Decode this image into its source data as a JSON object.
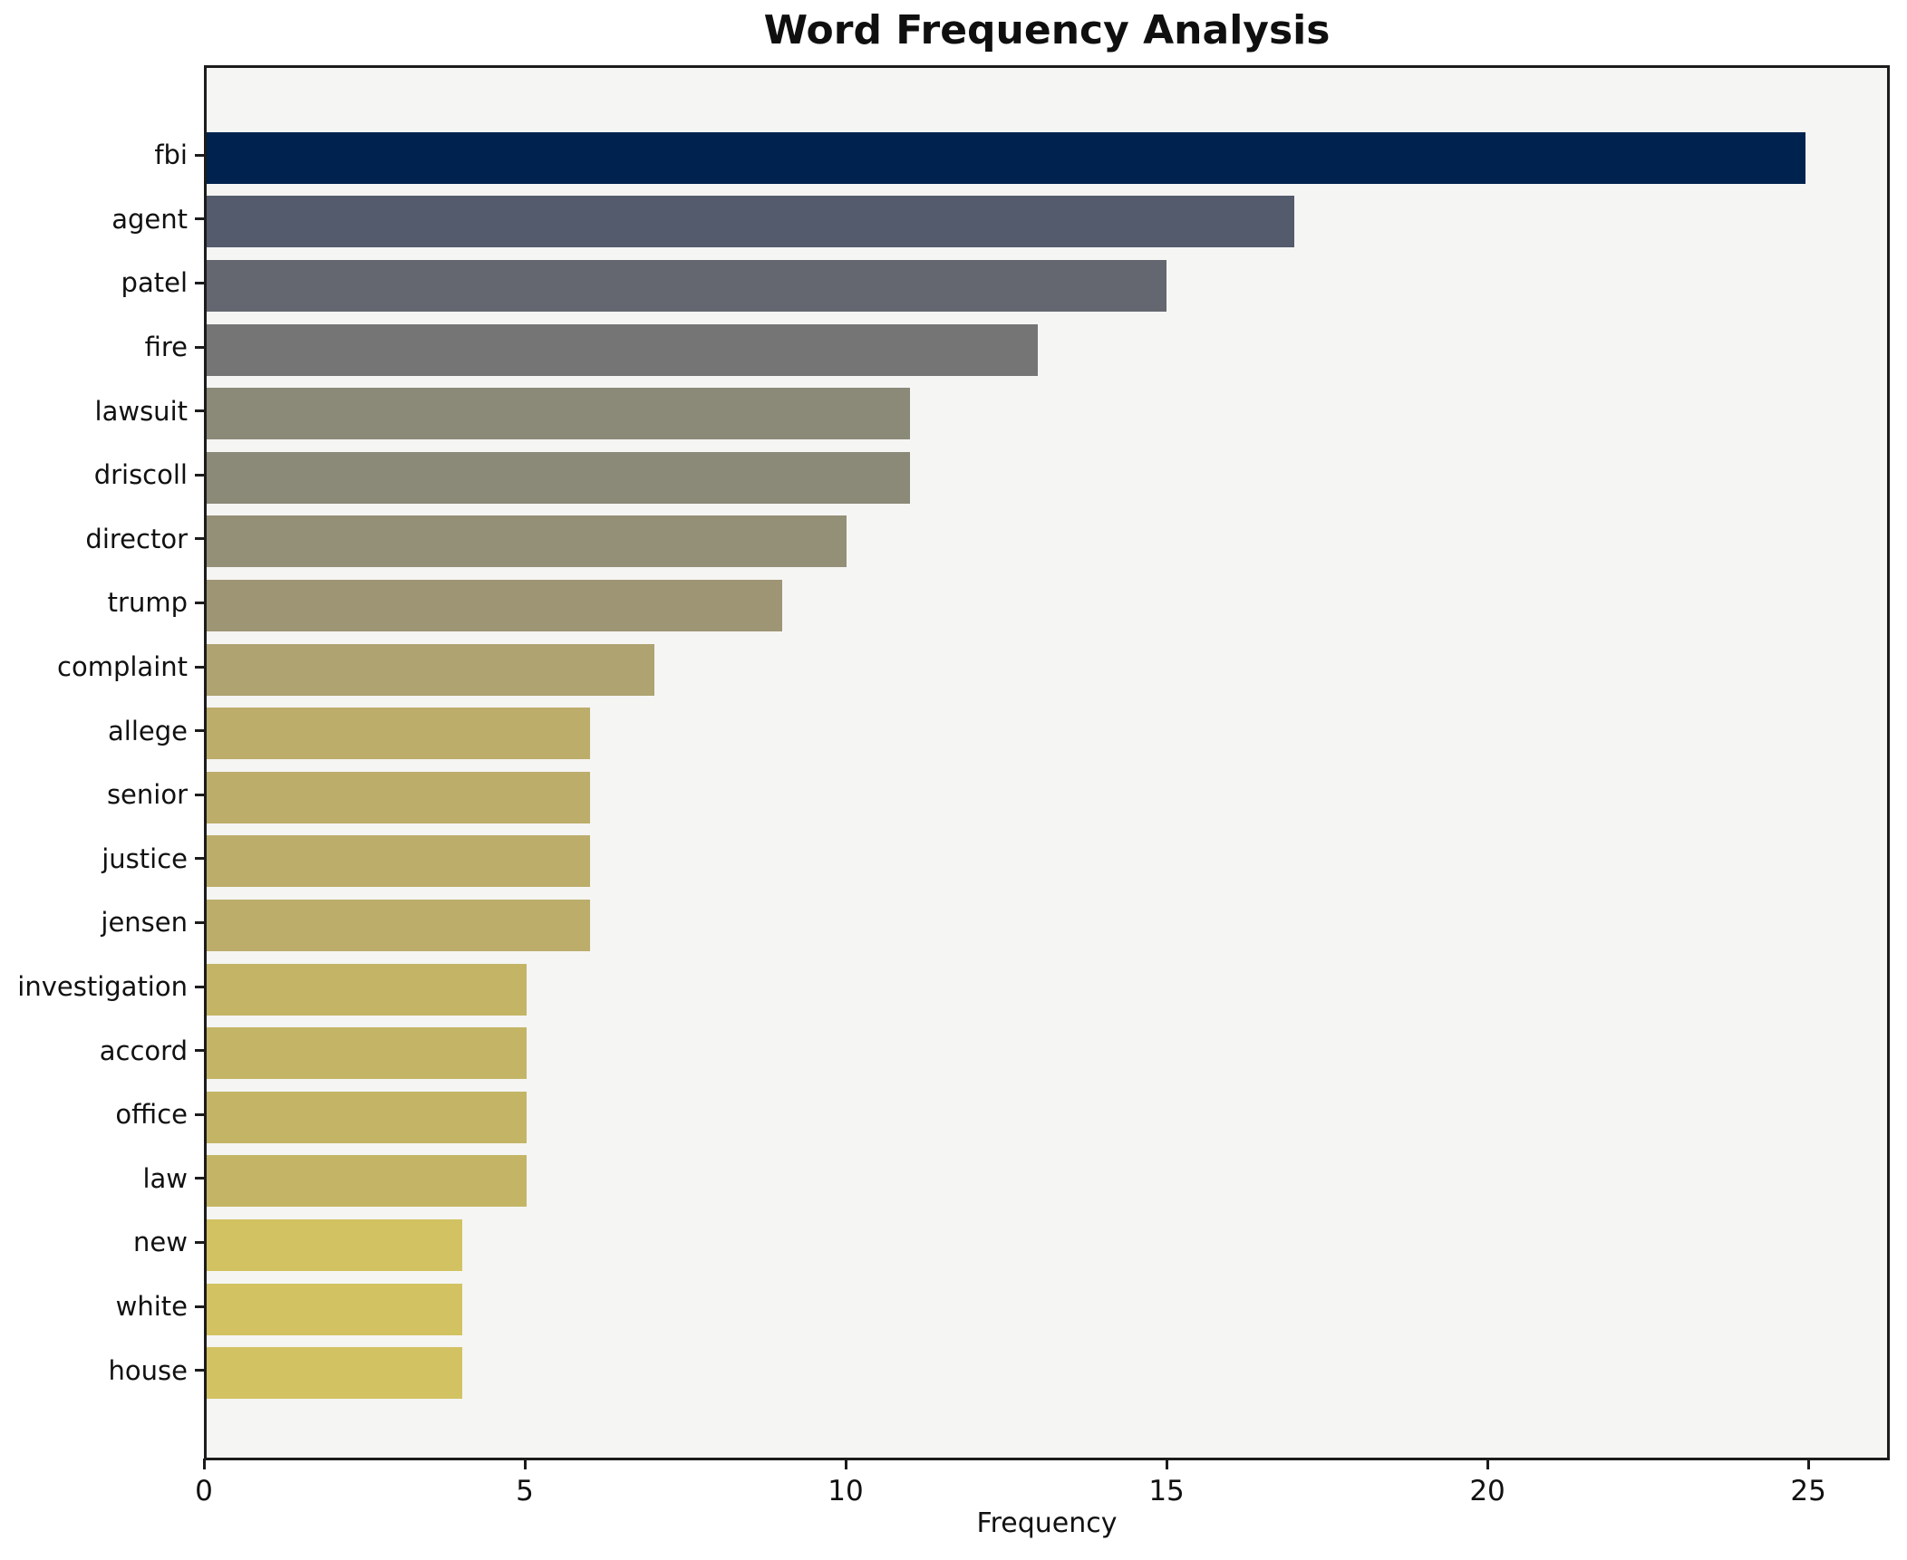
{
  "chart_data": {
    "type": "bar",
    "orientation": "horizontal",
    "title": "Word Frequency Analysis",
    "xlabel": "Frequency",
    "ylabel": "",
    "categories": [
      "fbi",
      "agent",
      "patel",
      "fire",
      "lawsuit",
      "driscoll",
      "director",
      "trump",
      "complaint",
      "allege",
      "senior",
      "justice",
      "jensen",
      "investigation",
      "accord",
      "office",
      "law",
      "new",
      "white",
      "house"
    ],
    "values": [
      25,
      17,
      15,
      13,
      11,
      11,
      10,
      9,
      7,
      6,
      6,
      6,
      6,
      5,
      5,
      5,
      5,
      4,
      4,
      4
    ],
    "bar_colors": [
      "#00224e",
      "#545b6d",
      "#64676f",
      "#757575",
      "#8b8978",
      "#8b8978",
      "#949077",
      "#9e9575",
      "#aea371",
      "#bcad6b",
      "#bcad6b",
      "#bcad6b",
      "#bcad6b",
      "#c4b566",
      "#c4b566",
      "#c4b566",
      "#c4b566",
      "#d2c262",
      "#d2c262",
      "#d2c262"
    ],
    "xlim": [
      0,
      26.27
    ],
    "xticks": [
      0,
      5,
      10,
      15,
      20,
      25
    ],
    "grid": false,
    "legend": null,
    "plot_background": "#f5f5f3",
    "figure_background": "#ffffff",
    "spine_color": "#1c1c1c"
  }
}
